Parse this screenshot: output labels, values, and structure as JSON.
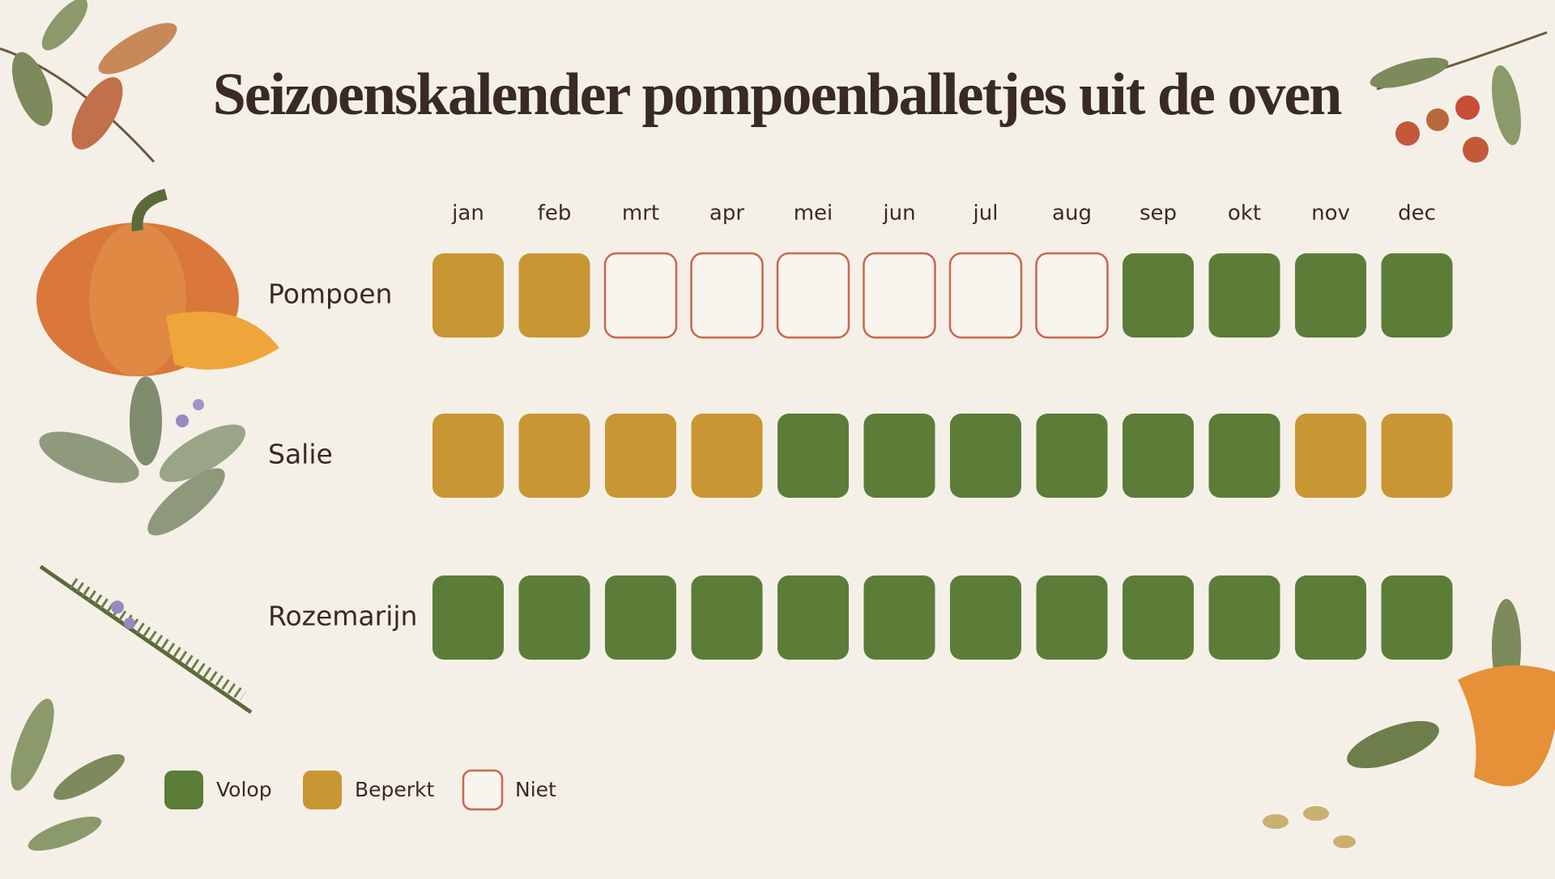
{
  "title": "Seizoenskalender pompoenballetjes uit de oven",
  "months": [
    "jan",
    "feb",
    "mrt",
    "apr",
    "mei",
    "jun",
    "jul",
    "aug",
    "sep",
    "okt",
    "nov",
    "dec"
  ],
  "legend": [
    {
      "label": "Volop",
      "color": "#5b7d38"
    },
    {
      "label": "Beperkt",
      "color": "#c99634"
    },
    {
      "label": "Niet",
      "color": "#c8674a"
    }
  ],
  "rows": [
    {
      "label": "Pompoen",
      "cells": [
        1,
        1,
        2,
        2,
        2,
        2,
        2,
        2,
        0,
        0,
        0,
        0
      ]
    },
    {
      "label": "Salie",
      "cells": [
        1,
        1,
        1,
        1,
        0,
        0,
        0,
        0,
        0,
        0,
        1,
        1
      ]
    },
    {
      "label": "Rozemarijn",
      "cells": [
        0,
        0,
        0,
        0,
        0,
        0,
        0,
        0,
        0,
        0,
        0,
        0
      ]
    }
  ]
}
